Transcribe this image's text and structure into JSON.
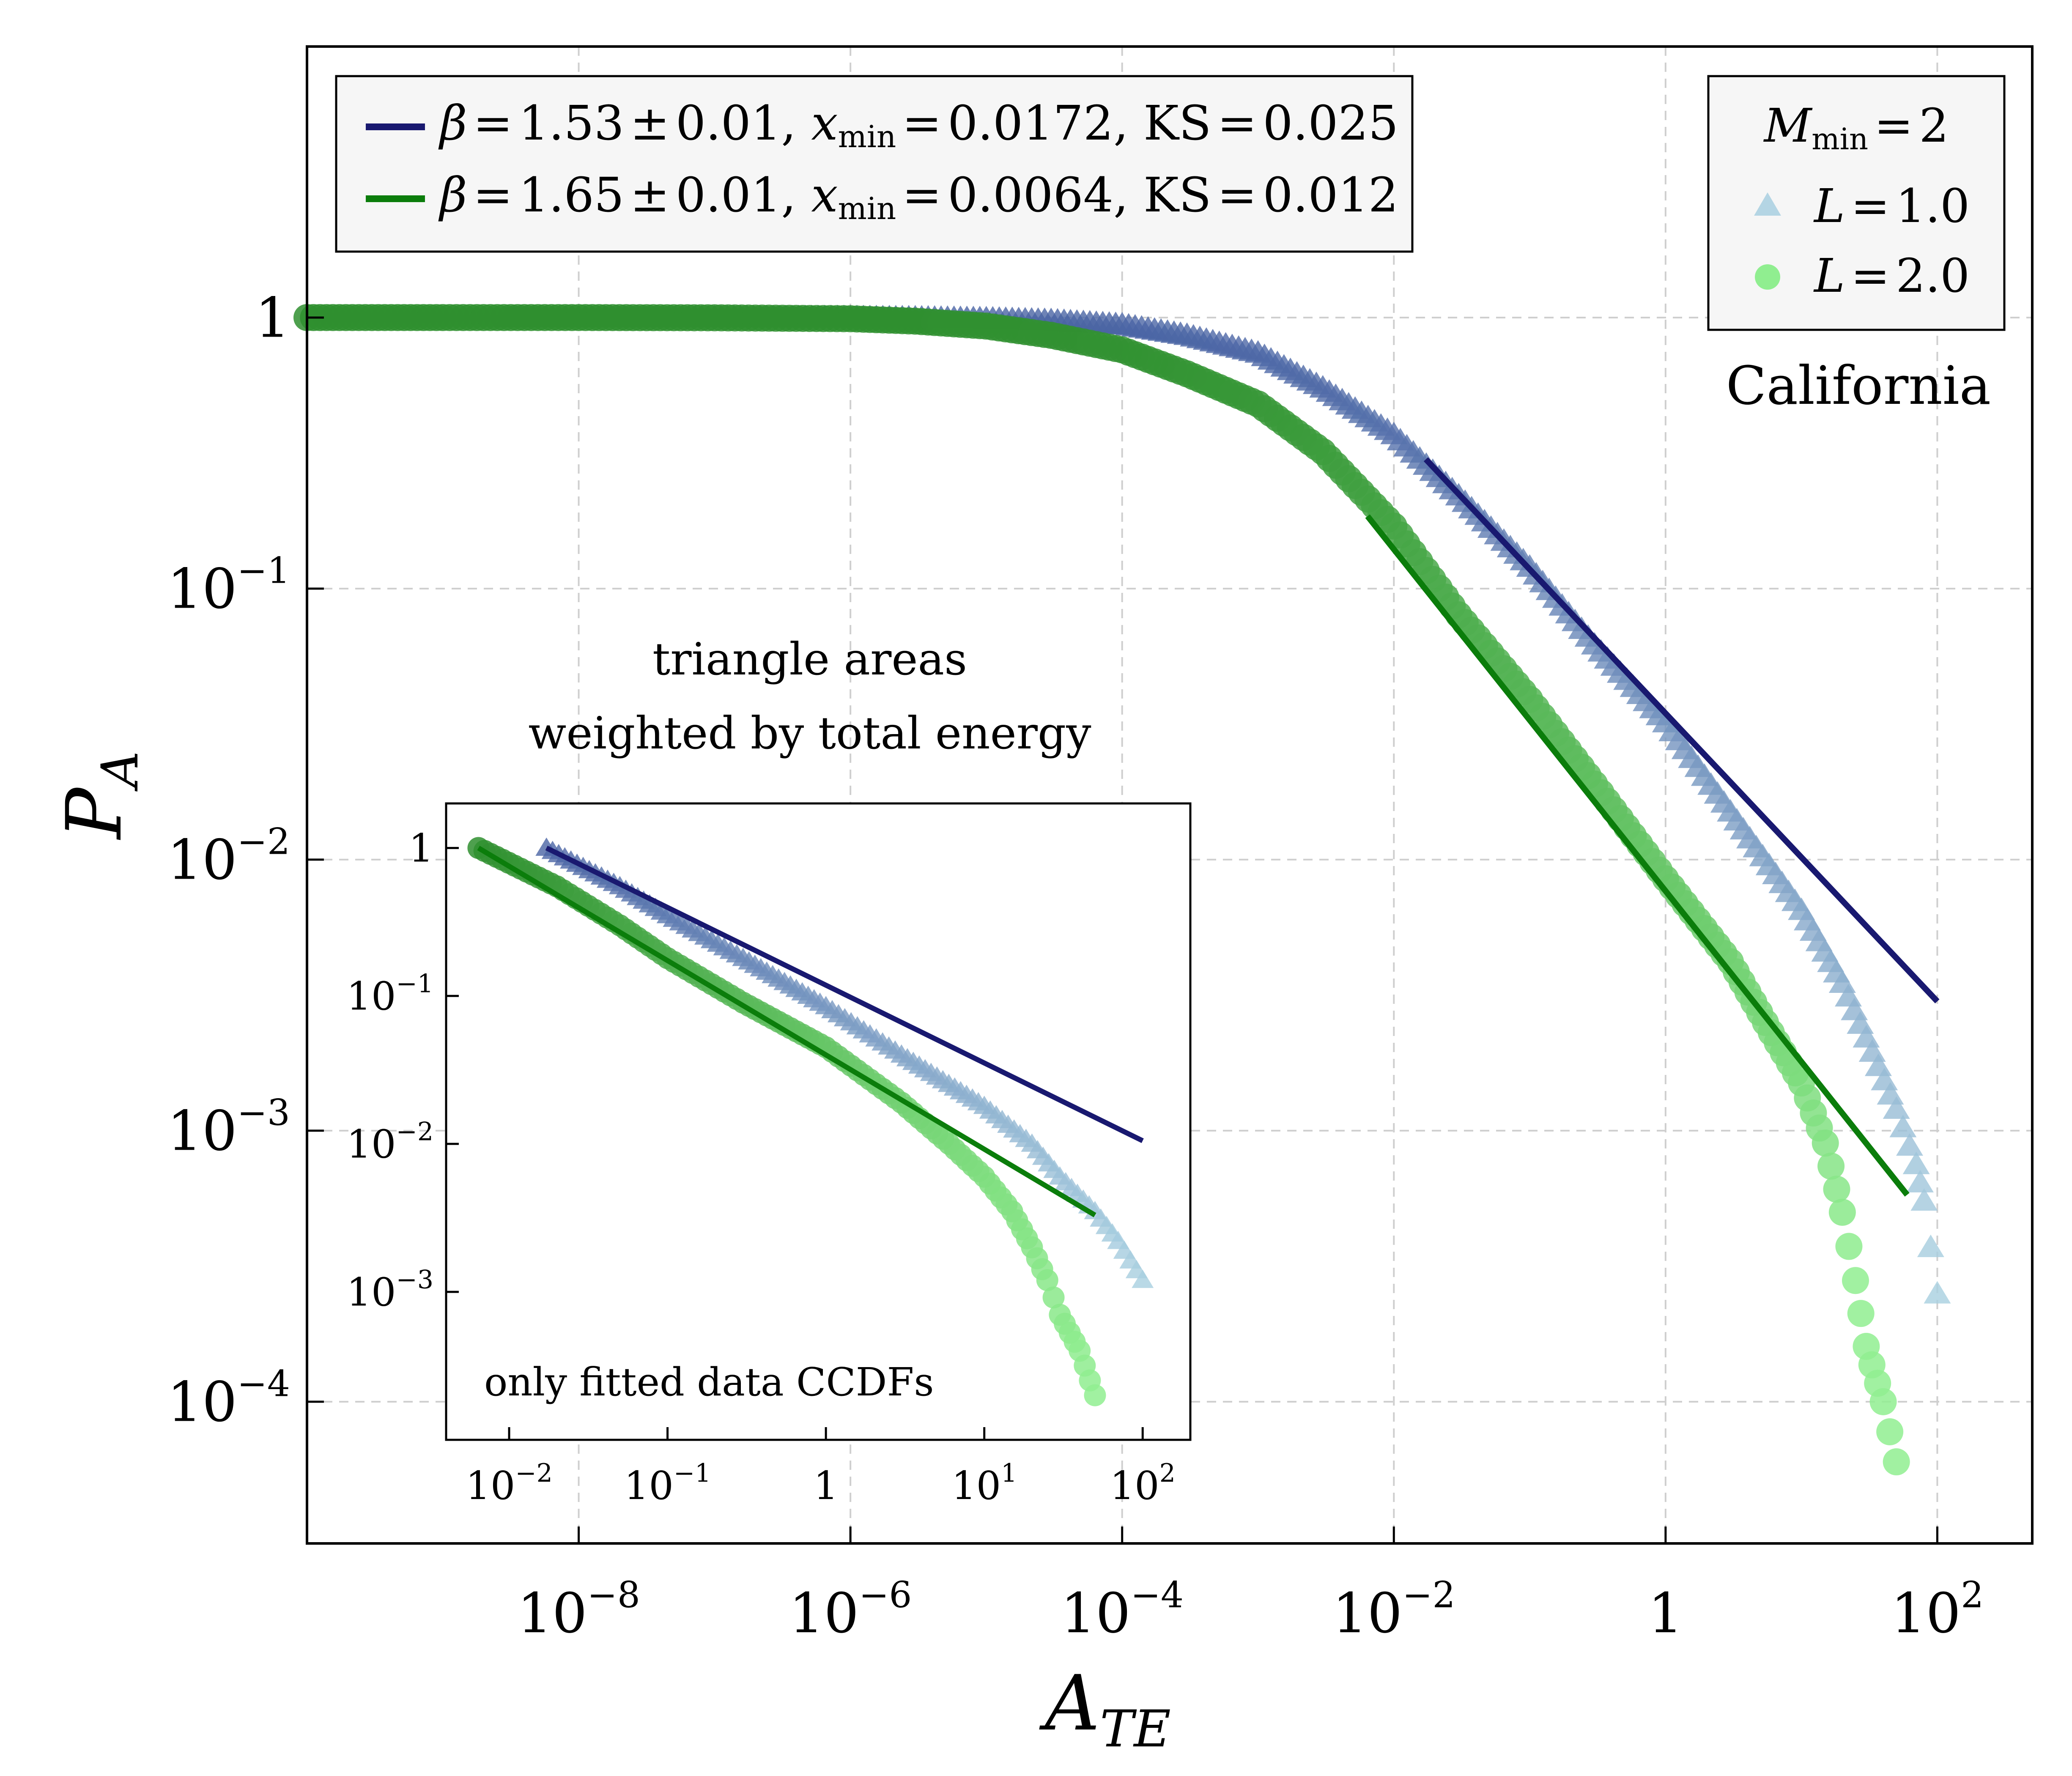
{
  "colors": {
    "fit_l1": "#191970",
    "fit_l2": "#0b7d0b",
    "data_l1_dark": "#4a64a4",
    "data_l1_light": "#a8cfe0",
    "data_l2_dark": "#2f8f2f",
    "data_l2_light": "#90ee90",
    "grid": "#cfcfcf",
    "legend_bg": "#f6f6f6"
  },
  "labels": {
    "xlabel_main": "A",
    "xlabel_sub": "TE",
    "ylabel_main": "P",
    "ylabel_sub": "A",
    "region": "California",
    "note_line1": "triangle areas",
    "note_line2": "weighted by total energy",
    "inset_note": "only fitted data CCDFs"
  },
  "legend_fits": [
    {
      "name": "fit-l1",
      "beta_sym": "β",
      "eq": "=",
      "beta": "1.53",
      "pm": "±",
      "err": "0.01",
      "x_sym": "x",
      "x_sub": "min",
      "xmin": "0.0172",
      "ks_label": "KS",
      "ks": "0.025"
    },
    {
      "name": "fit-l2",
      "beta_sym": "β",
      "eq": "=",
      "beta": "1.65",
      "pm": "±",
      "err": "0.01",
      "x_sym": "x",
      "x_sub": "min",
      "xmin": "0.0064",
      "ks_label": "KS",
      "ks": "0.012"
    }
  ],
  "legend_data": {
    "title_main": "M",
    "title_sub": "min",
    "title_eq": "=",
    "title_val": "2",
    "entries": [
      {
        "sym": "L",
        "eq": "=",
        "val": "1.0",
        "marker": "triangle"
      },
      {
        "sym": "L",
        "eq": "=",
        "val": "2.0",
        "marker": "circle"
      }
    ]
  },
  "chart_data": [
    {
      "name": "main",
      "type": "scatter",
      "xscale": "log",
      "yscale": "log",
      "xlim": [
        1e-10,
        500
      ],
      "ylim": [
        3e-05,
        10
      ],
      "grid": true,
      "xticks": [
        {
          "v": 1e-08,
          "base": "10",
          "exp": "−8"
        },
        {
          "v": 1e-06,
          "base": "10",
          "exp": "−6"
        },
        {
          "v": 0.0001,
          "base": "10",
          "exp": "−4"
        },
        {
          "v": 0.01,
          "base": "10",
          "exp": "−2"
        },
        {
          "v": 1,
          "base": "1",
          "exp": ""
        },
        {
          "v": 100,
          "base": "10",
          "exp": "2"
        }
      ],
      "yticks": [
        {
          "v": 1,
          "base": "1",
          "exp": ""
        },
        {
          "v": 0.1,
          "base": "10",
          "exp": "−1"
        },
        {
          "v": 0.01,
          "base": "10",
          "exp": "−2"
        },
        {
          "v": 0.001,
          "base": "10",
          "exp": "−3"
        },
        {
          "v": 0.0001,
          "base": "10",
          "exp": "−4"
        }
      ],
      "series": [
        {
          "name": "L = 1.0",
          "marker": "triangle",
          "points": [
            [
              3e-09,
              1.0
            ],
            [
              1e-08,
              1.0
            ],
            [
              3e-08,
              1.0
            ],
            [
              1e-07,
              1.0
            ],
            [
              3e-07,
              1.0
            ],
            [
              1e-06,
              1.0
            ],
            [
              3e-06,
              0.998
            ],
            [
              1e-05,
              0.99
            ],
            [
              3e-05,
              0.975
            ],
            [
              0.0001,
              0.94
            ],
            [
              0.0003,
              0.86
            ],
            [
              0.001,
              0.74
            ],
            [
              0.003,
              0.55
            ],
            [
              0.01,
              0.37
            ],
            [
              0.03,
              0.22
            ],
            [
              0.1,
              0.12
            ],
            [
              0.3,
              0.062
            ],
            [
              1,
              0.032
            ],
            [
              3,
              0.015
            ],
            [
              10,
              0.0065
            ],
            [
              20,
              0.0035
            ],
            [
              30,
              0.0022
            ],
            [
              50,
              0.0012
            ],
            [
              70,
              0.00075
            ],
            [
              80,
              0.00055
            ],
            [
              100,
              0.00025
            ]
          ]
        },
        {
          "name": "L = 2.0",
          "marker": "circle",
          "points": [
            [
              1e-10,
              1.0
            ],
            [
              3e-10,
              1.0
            ],
            [
              1e-09,
              1.0
            ],
            [
              1e-08,
              1.0
            ],
            [
              1e-07,
              0.998
            ],
            [
              1e-06,
              0.99
            ],
            [
              3e-06,
              0.97
            ],
            [
              1e-05,
              0.93
            ],
            [
              3e-05,
              0.86
            ],
            [
              0.0001,
              0.76
            ],
            [
              0.0003,
              0.62
            ],
            [
              0.001,
              0.48
            ],
            [
              0.003,
              0.32
            ],
            [
              0.01,
              0.17
            ],
            [
              0.03,
              0.08
            ],
            [
              0.1,
              0.039
            ],
            [
              0.3,
              0.019
            ],
            [
              1,
              0.0085
            ],
            [
              3,
              0.0042
            ],
            [
              6,
              0.0023
            ],
            [
              10,
              0.0015
            ],
            [
              15,
              0.0009
            ],
            [
              20,
              0.0005
            ],
            [
              25,
              0.00028
            ],
            [
              30,
              0.00016
            ],
            [
              40,
              0.0001
            ],
            [
              50,
              6e-05
            ]
          ]
        }
      ],
      "fits": [
        {
          "name": "fit L = 1.0",
          "x": [
            0.0172,
            100
          ],
          "y": [
            0.3,
            0.003
          ]
        },
        {
          "name": "fit L = 2.0",
          "x": [
            0.0064,
            60
          ],
          "y": [
            0.185,
            0.00058
          ]
        }
      ]
    },
    {
      "name": "inset",
      "type": "scatter",
      "xscale": "log",
      "yscale": "log",
      "xlim": [
        0.004,
        200
      ],
      "ylim": [
        0.0001,
        2
      ],
      "grid": false,
      "xticks": [
        {
          "v": 0.01,
          "base": "10",
          "exp": "−2"
        },
        {
          "v": 0.1,
          "base": "10",
          "exp": "−1"
        },
        {
          "v": 1,
          "base": "1",
          "exp": ""
        },
        {
          "v": 10,
          "base": "10",
          "exp": "1"
        },
        {
          "v": 100,
          "base": "10",
          "exp": "2"
        }
      ],
      "yticks": [
        {
          "v": 1,
          "base": "1",
          "exp": ""
        },
        {
          "v": 0.1,
          "base": "10",
          "exp": "−1"
        },
        {
          "v": 0.01,
          "base": "10",
          "exp": "−2"
        },
        {
          "v": 0.001,
          "base": "10",
          "exp": "−3"
        }
      ],
      "series": [
        {
          "name": "L = 1.0 (fitted)",
          "marker": "triangle",
          "points": [
            [
              0.0172,
              1.0
            ],
            [
              0.05,
              0.55
            ],
            [
              0.1,
              0.35
            ],
            [
              0.3,
              0.18
            ],
            [
              1,
              0.085
            ],
            [
              3,
              0.04
            ],
            [
              10,
              0.018
            ],
            [
              20,
              0.01
            ],
            [
              30,
              0.006
            ],
            [
              50,
              0.0035
            ],
            [
              70,
              0.0022
            ],
            [
              100,
              0.0012
            ]
          ]
        },
        {
          "name": "L = 2.0 (fitted)",
          "marker": "circle",
          "points": [
            [
              0.0064,
              1.0
            ],
            [
              0.02,
              0.55
            ],
            [
              0.05,
              0.3
            ],
            [
              0.1,
              0.18
            ],
            [
              0.3,
              0.09
            ],
            [
              1,
              0.045
            ],
            [
              3,
              0.019
            ],
            [
              6,
              0.01
            ],
            [
              10,
              0.006
            ],
            [
              15,
              0.0035
            ],
            [
              20,
              0.002
            ],
            [
              25,
              0.0012
            ],
            [
              30,
              0.0007
            ],
            [
              40,
              0.0004
            ],
            [
              50,
              0.0002
            ]
          ]
        }
      ],
      "fits": [
        {
          "name": "fit L = 1.0",
          "x": [
            0.0172,
            100
          ],
          "y": [
            1.0,
            0.0105
          ]
        },
        {
          "name": "fit L = 2.0",
          "x": [
            0.0064,
            50
          ],
          "y": [
            1.0,
            0.0033
          ]
        }
      ]
    }
  ]
}
